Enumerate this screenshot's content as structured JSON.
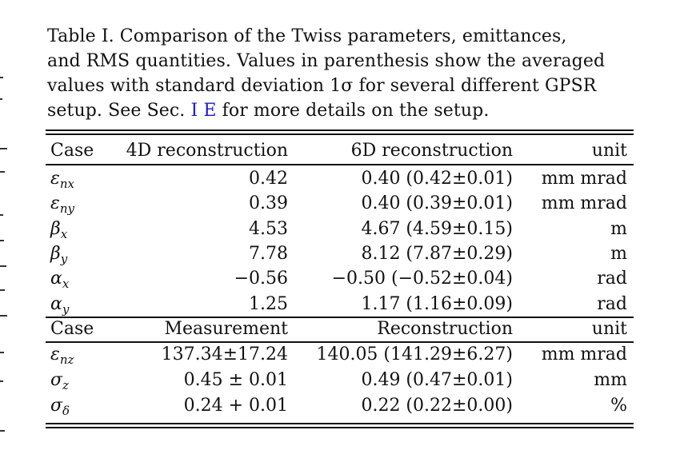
{
  "caption": {
    "lines": [
      "Table I.  Comparison of the Twiss parameters, emittances,",
      "and RMS quantities. Values in parenthesis show the averaged",
      "values with standard deviation 1σ for several different GPSR"
    ],
    "last_line_before": "setup.  See Sec. ",
    "ref": "I E",
    "last_line_after": " for more details on the setup."
  },
  "table": {
    "header1": [
      "Case",
      "4D reconstruction",
      "6D reconstruction",
      "unit"
    ],
    "rows1": [
      {
        "sym": "ε",
        "sub": "nx",
        "c1": "0.42",
        "c2": "0.40 (0.42±0.01)",
        "unit": "mm mrad"
      },
      {
        "sym": "ε",
        "sub": "ny",
        "c1": "0.39",
        "c2": "0.40 (0.39±0.01)",
        "unit": "mm mrad"
      },
      {
        "sym": "β",
        "sub": "x",
        "c1": "4.53",
        "c2": "4.67 (4.59±0.15)",
        "unit": "m"
      },
      {
        "sym": "β",
        "sub": "y",
        "c1": "7.78",
        "c2": "8.12 (7.87±0.29)",
        "unit": "m"
      },
      {
        "sym": "α",
        "sub": "x",
        "c1": "−0.56",
        "c2": "−0.50 (−0.52±0.04)",
        "unit": "rad"
      },
      {
        "sym": "α",
        "sub": "y",
        "c1": "1.25",
        "c2": "1.17 (1.16±0.09)",
        "unit": "rad"
      }
    ],
    "header2": [
      "Case",
      "Measurement",
      "Reconstruction",
      "unit"
    ],
    "rows2": [
      {
        "sym": "ε",
        "sub": "nz",
        "c1": "137.34±17.24",
        "c2": "140.05 (141.29±6.27)",
        "unit": "mm mrad"
      },
      {
        "sym": "σ",
        "sub": "z",
        "c1": "0.45 ± 0.01",
        "c2": "0.49 (0.47±0.01)",
        "unit": "mm"
      },
      {
        "sym": "σ",
        "sub": "δ",
        "c1": "0.24 + 0.01",
        "c2": "0.22 (0.22±0.00)",
        "unit": "%"
      }
    ]
  }
}
